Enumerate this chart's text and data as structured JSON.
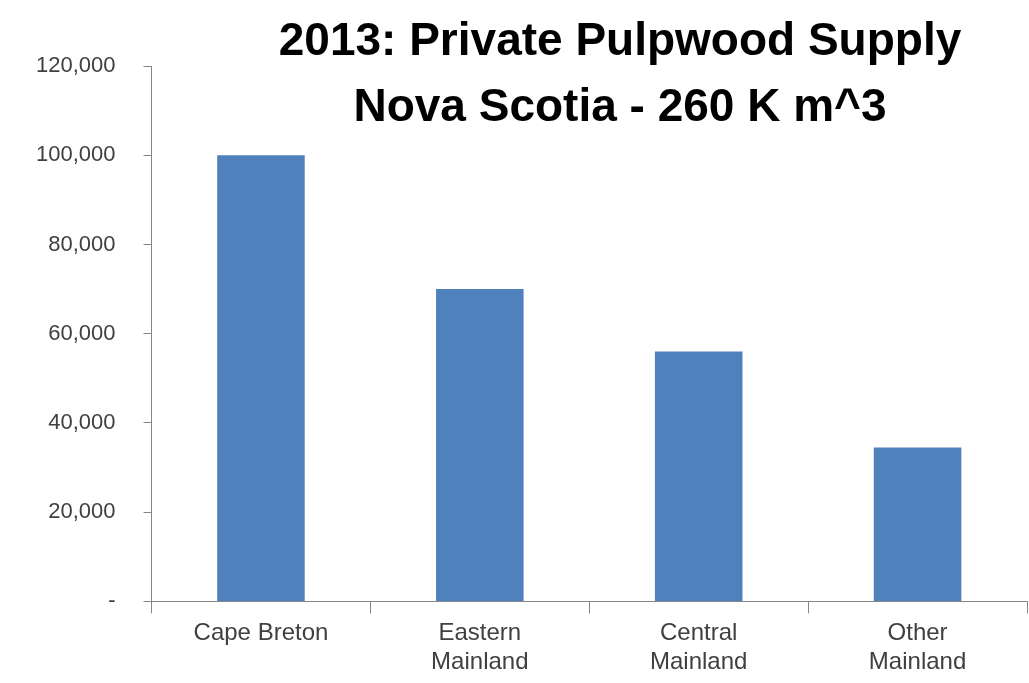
{
  "chart_data": {
    "type": "bar",
    "title": "2013: Private Pulpwood Supply\nNova Scotia - 260 K m^3",
    "categories": [
      "Cape Breton",
      "Eastern\nMainland",
      "Central\nMainland",
      "Other\nMainland"
    ],
    "values": [
      100000,
      70000,
      56000,
      34500
    ],
    "color": "#4f81bd",
    "ylim": [
      0,
      120000
    ],
    "yticks": [
      {
        "value": 0,
        "label": "-"
      },
      {
        "value": 20000,
        "label": "20,000"
      },
      {
        "value": 40000,
        "label": "40,000"
      },
      {
        "value": 60000,
        "label": "60,000"
      },
      {
        "value": 80000,
        "label": "80,000"
      },
      {
        "value": 100000,
        "label": "100,000"
      },
      {
        "value": 120000,
        "label": "120,000"
      }
    ],
    "grid": false,
    "legend": false
  }
}
